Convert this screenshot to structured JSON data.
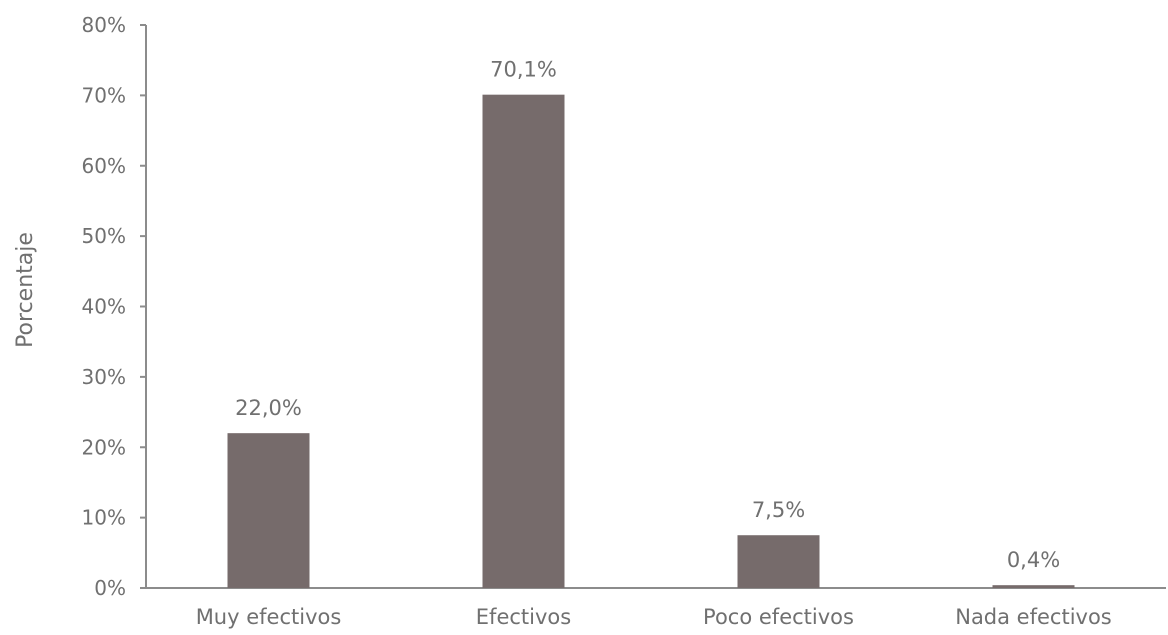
{
  "chart_data": {
    "type": "bar",
    "title": "",
    "xlabel": "",
    "ylabel": "Porcentaje",
    "categories": [
      "Muy efectivos",
      "Efectivos",
      "Poco efectivos",
      "Nada efectivos"
    ],
    "values": [
      22.0,
      70.1,
      7.5,
      0.4
    ],
    "value_labels": [
      "22,0%",
      "70,1%",
      "7,5%",
      "0,4%"
    ],
    "ylim": [
      0,
      80
    ],
    "yticks": [
      0,
      10,
      20,
      30,
      40,
      50,
      60,
      70,
      80
    ],
    "ytick_labels": [
      "0%",
      "10%",
      "20%",
      "30%",
      "40%",
      "50%",
      "60%",
      "70%",
      "80%"
    ],
    "grid": false,
    "legend": "none",
    "colors": {
      "bar": "#766b6b",
      "axis": "#8c8c8c",
      "text": "#707070"
    }
  }
}
